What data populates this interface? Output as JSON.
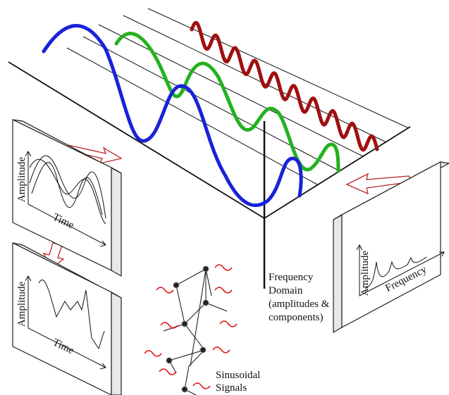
{
  "panels": [
    {
      "y_label": "Amplitude",
      "x_label": "Time"
    },
    {
      "y_label": "Amplitude",
      "x_label": "Time"
    },
    {
      "y_label": "Amplitude",
      "x_label": "Frequency"
    }
  ],
  "labels": {
    "frequency_domain": [
      "Frequency",
      "Domain",
      "(amplitudes &",
      "components)"
    ],
    "sinusoidal": [
      "Sinusoidal",
      "Signals"
    ]
  }
}
